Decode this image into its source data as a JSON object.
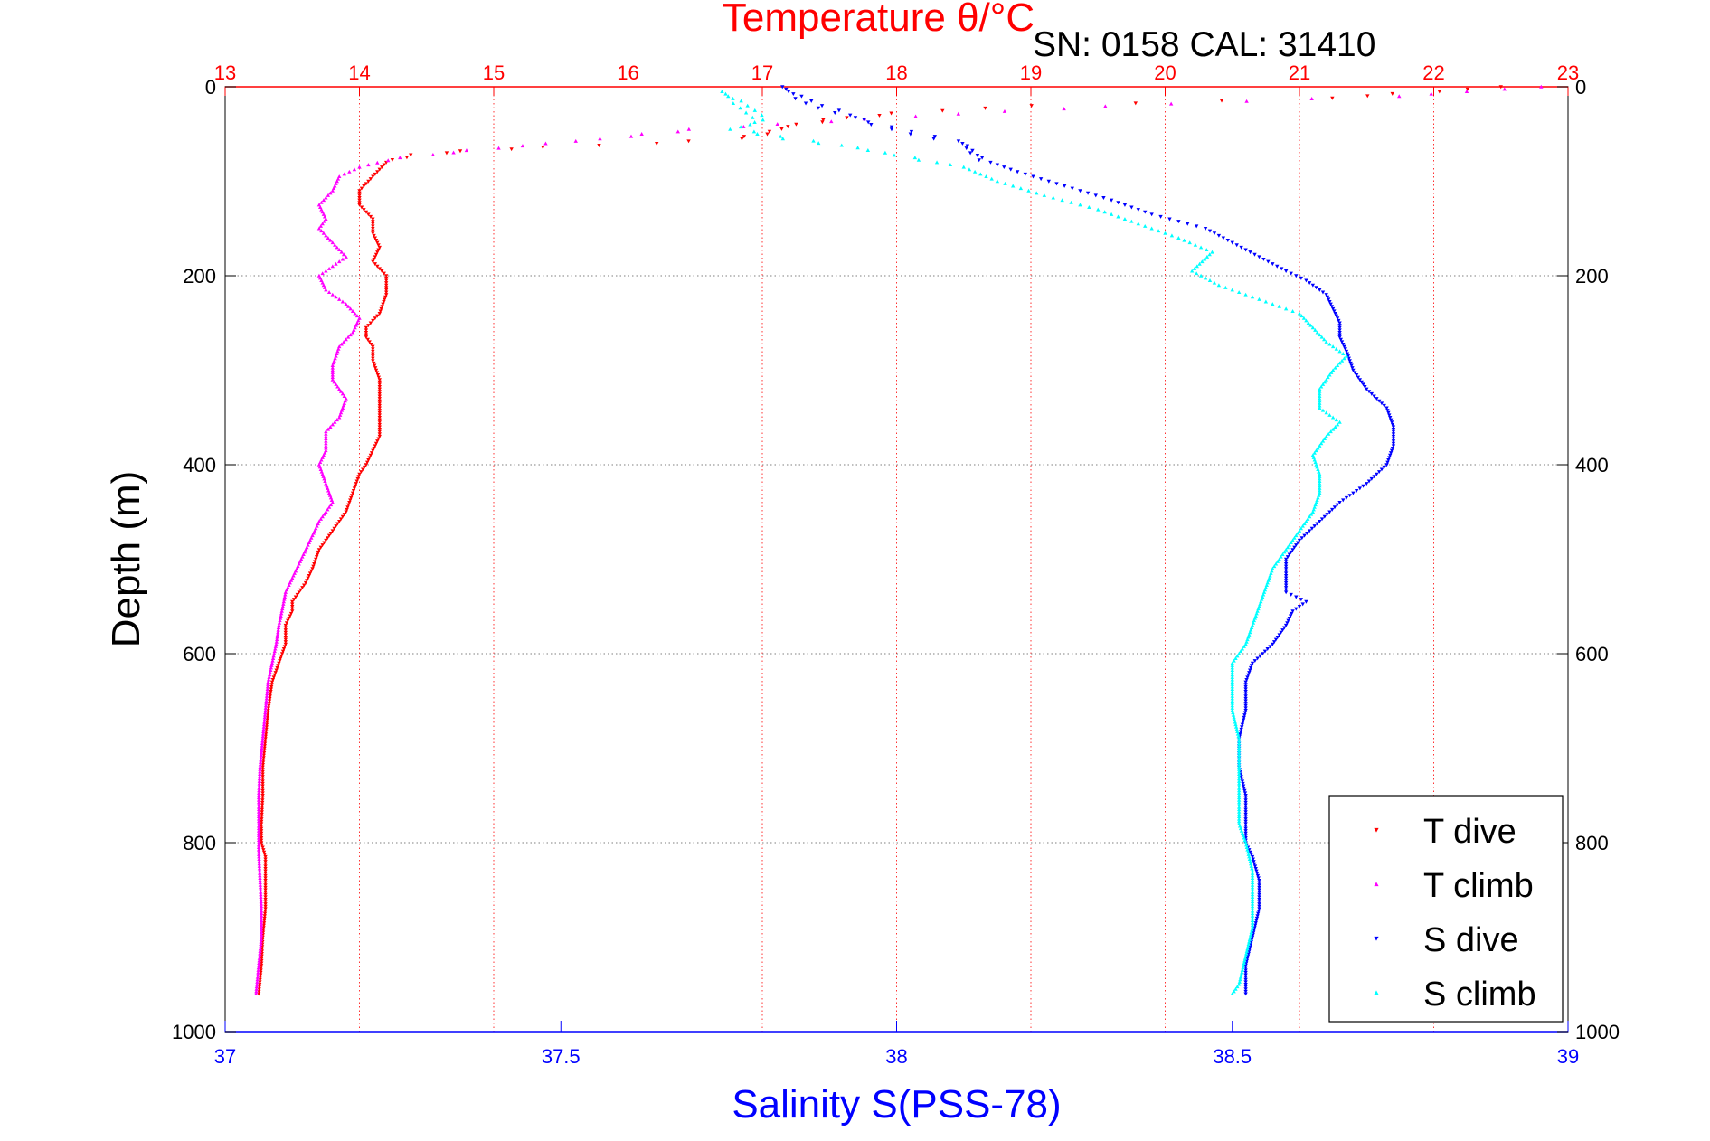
{
  "chart_data": {
    "type": "scatter",
    "title": "Temperature θ/°C",
    "subtitle": "SN: 0158  CAL: 31410",
    "xlabel": "Salinity S(PSS-78)",
    "ylabel": "Depth (m)",
    "x_bottom": {
      "label": "Salinity S(PSS-78)",
      "range": [
        37,
        39
      ],
      "ticks": [
        "37",
        "37.5",
        "38",
        "38.5",
        "39"
      ],
      "color": "#0000ff"
    },
    "x_top": {
      "label": "Temperature θ/°C",
      "range": [
        13,
        23
      ],
      "ticks": [
        "13",
        "14",
        "15",
        "16",
        "17",
        "18",
        "19",
        "20",
        "21",
        "22",
        "23"
      ],
      "color": "#ff0000"
    },
    "y": {
      "label": "Depth (m)",
      "range": [
        0,
        1000
      ],
      "reversed": true,
      "ticks": [
        "0",
        "200",
        "400",
        "600",
        "800",
        "1000"
      ]
    },
    "grid": true,
    "legend_position": "bottom-right",
    "series": [
      {
        "name": "T dive",
        "axis": "temperature",
        "color": "#ff0000",
        "marker": "triangle-down",
        "points": [
          [
            22.5,
            0
          ],
          [
            22.0,
            5
          ],
          [
            21.2,
            12
          ],
          [
            19.0,
            20
          ],
          [
            18.0,
            28
          ],
          [
            17.5,
            35
          ],
          [
            17.2,
            42
          ],
          [
            17.0,
            50
          ],
          [
            16.8,
            55
          ],
          [
            16.2,
            60
          ],
          [
            15.4,
            64
          ],
          [
            14.8,
            68
          ],
          [
            14.4,
            72
          ],
          [
            14.2,
            80
          ],
          [
            14.1,
            95
          ],
          [
            14.0,
            110
          ],
          [
            14.0,
            125
          ],
          [
            14.1,
            140
          ],
          [
            14.1,
            155
          ],
          [
            14.15,
            170
          ],
          [
            14.1,
            185
          ],
          [
            14.2,
            200
          ],
          [
            14.2,
            220
          ],
          [
            14.15,
            240
          ],
          [
            14.05,
            255
          ],
          [
            14.05,
            265
          ],
          [
            14.1,
            275
          ],
          [
            14.1,
            290
          ],
          [
            14.15,
            310
          ],
          [
            14.15,
            330
          ],
          [
            14.15,
            350
          ],
          [
            14.15,
            370
          ],
          [
            14.1,
            385
          ],
          [
            14.05,
            400
          ],
          [
            14.0,
            410
          ],
          [
            13.95,
            430
          ],
          [
            13.9,
            450
          ],
          [
            13.8,
            470
          ],
          [
            13.7,
            490
          ],
          [
            13.65,
            510
          ],
          [
            13.6,
            525
          ],
          [
            13.55,
            535
          ],
          [
            13.5,
            545
          ],
          [
            13.5,
            555
          ],
          [
            13.45,
            570
          ],
          [
            13.45,
            590
          ],
          [
            13.4,
            610
          ],
          [
            13.35,
            630
          ],
          [
            13.32,
            660
          ],
          [
            13.3,
            690
          ],
          [
            13.28,
            720
          ],
          [
            13.28,
            750
          ],
          [
            13.27,
            780
          ],
          [
            13.27,
            800
          ],
          [
            13.3,
            815
          ],
          [
            13.3,
            840
          ],
          [
            13.3,
            870
          ],
          [
            13.28,
            900
          ],
          [
            13.27,
            930
          ],
          [
            13.25,
            960
          ]
        ]
      },
      {
        "name": "T climb",
        "axis": "temperature",
        "color": "#ff00ff",
        "marker": "triangle-up",
        "points": [
          [
            22.8,
            0
          ],
          [
            21.7,
            10
          ],
          [
            20.0,
            18
          ],
          [
            18.8,
            26
          ],
          [
            17.8,
            34
          ],
          [
            16.5,
            45
          ],
          [
            15.8,
            55
          ],
          [
            15.0,
            65
          ],
          [
            14.5,
            72
          ],
          [
            14.2,
            78
          ],
          [
            14.0,
            85
          ],
          [
            13.85,
            95
          ],
          [
            13.8,
            110
          ],
          [
            13.7,
            125
          ],
          [
            13.75,
            140
          ],
          [
            13.7,
            150
          ],
          [
            13.8,
            165
          ],
          [
            13.9,
            180
          ],
          [
            13.7,
            200
          ],
          [
            13.75,
            215
          ],
          [
            13.9,
            230
          ],
          [
            14.0,
            245
          ],
          [
            13.95,
            260
          ],
          [
            13.85,
            275
          ],
          [
            13.8,
            295
          ],
          [
            13.8,
            310
          ],
          [
            13.9,
            330
          ],
          [
            13.85,
            350
          ],
          [
            13.75,
            365
          ],
          [
            13.75,
            385
          ],
          [
            13.7,
            400
          ],
          [
            13.75,
            420
          ],
          [
            13.8,
            440
          ],
          [
            13.7,
            460
          ],
          [
            13.65,
            475
          ],
          [
            13.6,
            490
          ],
          [
            13.55,
            505
          ],
          [
            13.5,
            520
          ],
          [
            13.45,
            535
          ],
          [
            13.43,
            550
          ],
          [
            13.4,
            570
          ],
          [
            13.38,
            590
          ],
          [
            13.35,
            610
          ],
          [
            13.32,
            630
          ],
          [
            13.3,
            660
          ],
          [
            13.28,
            690
          ],
          [
            13.26,
            720
          ],
          [
            13.25,
            750
          ],
          [
            13.25,
            780
          ],
          [
            13.25,
            810
          ],
          [
            13.26,
            840
          ],
          [
            13.27,
            870
          ],
          [
            13.27,
            900
          ],
          [
            13.25,
            930
          ],
          [
            13.23,
            960
          ]
        ]
      },
      {
        "name": "S dive",
        "axis": "salinity",
        "color": "#0000ff",
        "marker": "triangle-down",
        "points": [
          [
            37.83,
            0
          ],
          [
            37.85,
            10
          ],
          [
            37.88,
            20
          ],
          [
            37.93,
            30
          ],
          [
            37.97,
            40
          ],
          [
            38.03,
            50
          ],
          [
            38.1,
            60
          ],
          [
            38.12,
            75
          ],
          [
            38.18,
            90
          ],
          [
            38.25,
            105
          ],
          [
            38.32,
            120
          ],
          [
            38.38,
            135
          ],
          [
            38.46,
            150
          ],
          [
            38.5,
            165
          ],
          [
            38.54,
            180
          ],
          [
            38.58,
            195
          ],
          [
            38.61,
            205
          ],
          [
            38.64,
            220
          ],
          [
            38.65,
            235
          ],
          [
            38.66,
            250
          ],
          [
            38.66,
            265
          ],
          [
            38.67,
            280
          ],
          [
            38.68,
            300
          ],
          [
            38.7,
            320
          ],
          [
            38.73,
            340
          ],
          [
            38.74,
            360
          ],
          [
            38.74,
            380
          ],
          [
            38.73,
            400
          ],
          [
            38.7,
            420
          ],
          [
            38.66,
            440
          ],
          [
            38.63,
            460
          ],
          [
            38.6,
            480
          ],
          [
            38.58,
            500
          ],
          [
            38.58,
            520
          ],
          [
            38.58,
            535
          ],
          [
            38.61,
            545
          ],
          [
            38.59,
            555
          ],
          [
            38.58,
            570
          ],
          [
            38.56,
            590
          ],
          [
            38.53,
            610
          ],
          [
            38.52,
            630
          ],
          [
            38.52,
            660
          ],
          [
            38.51,
            690
          ],
          [
            38.51,
            720
          ],
          [
            38.52,
            750
          ],
          [
            38.52,
            780
          ],
          [
            38.52,
            800
          ],
          [
            38.53,
            815
          ],
          [
            38.54,
            840
          ],
          [
            38.54,
            870
          ],
          [
            38.53,
            900
          ],
          [
            38.52,
            930
          ],
          [
            38.52,
            960
          ]
        ]
      },
      {
        "name": "S climb",
        "axis": "salinity",
        "color": "#00ffff",
        "marker": "triangle-up",
        "points": [
          [
            37.74,
            5
          ],
          [
            37.76,
            15
          ],
          [
            37.78,
            25
          ],
          [
            37.8,
            35
          ],
          [
            37.76,
            45
          ],
          [
            37.84,
            55
          ],
          [
            37.92,
            62
          ],
          [
            38.02,
            75
          ],
          [
            38.1,
            85
          ],
          [
            38.15,
            100
          ],
          [
            38.22,
            115
          ],
          [
            38.3,
            130
          ],
          [
            38.36,
            145
          ],
          [
            38.42,
            160
          ],
          [
            38.47,
            175
          ],
          [
            38.44,
            195
          ],
          [
            38.48,
            210
          ],
          [
            38.54,
            225
          ],
          [
            38.6,
            240
          ],
          [
            38.62,
            255
          ],
          [
            38.64,
            270
          ],
          [
            38.67,
            285
          ],
          [
            38.65,
            300
          ],
          [
            38.63,
            320
          ],
          [
            38.63,
            340
          ],
          [
            38.66,
            355
          ],
          [
            38.64,
            370
          ],
          [
            38.62,
            390
          ],
          [
            38.63,
            410
          ],
          [
            38.63,
            430
          ],
          [
            38.62,
            450
          ],
          [
            38.6,
            470
          ],
          [
            38.58,
            490
          ],
          [
            38.56,
            510
          ],
          [
            38.55,
            530
          ],
          [
            38.54,
            550
          ],
          [
            38.53,
            570
          ],
          [
            38.52,
            590
          ],
          [
            38.5,
            610
          ],
          [
            38.5,
            630
          ],
          [
            38.5,
            660
          ],
          [
            38.51,
            690
          ],
          [
            38.51,
            720
          ],
          [
            38.51,
            750
          ],
          [
            38.51,
            780
          ],
          [
            38.52,
            800
          ],
          [
            38.53,
            830
          ],
          [
            38.53,
            860
          ],
          [
            38.53,
            890
          ],
          [
            38.52,
            920
          ],
          [
            38.51,
            950
          ],
          [
            38.5,
            960
          ]
        ]
      }
    ]
  }
}
